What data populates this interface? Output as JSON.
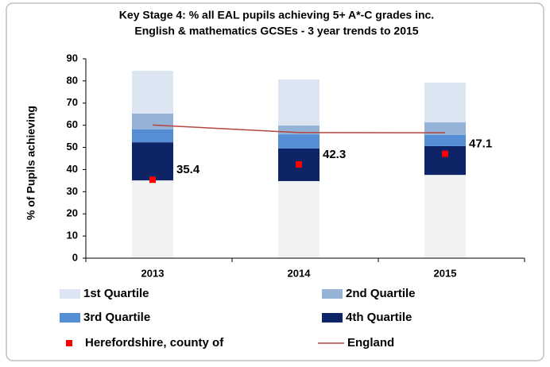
{
  "chart_data": {
    "type": "bar",
    "title": [
      "Key Stage 4: % all EAL pupils achieving 5+ A*-C grades inc.",
      "English & mathematics GCSEs - 3 year trends to 2015"
    ],
    "y_label": "% of Pupils achieving",
    "categories": [
      "2013",
      "2014",
      "2015"
    ],
    "ylim": [
      0,
      90
    ],
    "yticks": [
      0,
      10,
      20,
      30,
      40,
      50,
      60,
      70,
      80,
      90
    ],
    "stacked": true,
    "series": [
      {
        "color": "#f2f2f2",
        "values": [
          35.1,
          34.8,
          37.6
        ]
      },
      {
        "name": "4th Quartile",
        "color": "#0d2566",
        "values": [
          17.2,
          14.7,
          13.0
        ]
      },
      {
        "name": "3rd Quartile",
        "color": "#558ed5",
        "values": [
          5.8,
          6.4,
          5.0
        ]
      },
      {
        "name": "2nd Quartile",
        "color": "#95b3d7",
        "values": [
          7.2,
          4.0,
          5.7
        ]
      },
      {
        "name": "1st Quartile",
        "color": "#dce6f2",
        "values": [
          19.3,
          20.8,
          17.9
        ]
      },
      {
        "name": "Herefordshire, county of",
        "type": "scatter",
        "color": "#ff0000",
        "values": [
          35.4,
          42.3,
          47.1
        ]
      },
      {
        "name": "England",
        "type": "line",
        "color": "#b5453f",
        "values": [
          60.1,
          56.7,
          56.6
        ]
      }
    ]
  }
}
